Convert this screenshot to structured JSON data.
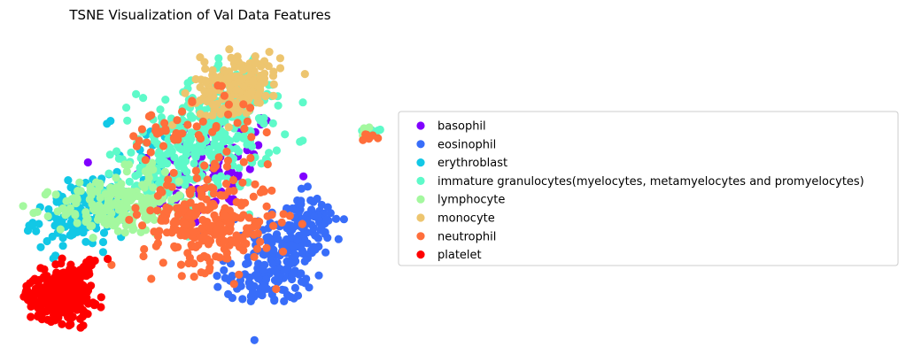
{
  "chart_data": {
    "type": "scatter",
    "title": "TSNE Visualization of Val Data Features",
    "xlabel": "",
    "ylabel": "",
    "axes_visible": false,
    "grid": false,
    "legend_placement": "right, outside plot area",
    "marker": "filled circle",
    "series": [
      {
        "name": "basophil",
        "color": "#8000ff",
        "clusters": [
          {
            "cx": 5.6,
            "cy": 7.2,
            "sx": 0.8,
            "sy": 1.0,
            "n": 60
          },
          {
            "cx": 4.2,
            "cy": 6.1,
            "sx": 0.9,
            "sy": 0.8,
            "n": 30
          },
          {
            "cx": 9.6,
            "cy": 8.1,
            "sx": 0.1,
            "sy": 0.15,
            "n": 3
          }
        ]
      },
      {
        "name": "eosinophil",
        "color": "#386df9",
        "clusters": [
          {
            "cx": 7.4,
            "cy": 3.9,
            "sx": 0.6,
            "sy": 0.9,
            "n": 140
          },
          {
            "cx": 6.7,
            "cy": 2.6,
            "sx": 0.5,
            "sy": 0.5,
            "n": 60
          },
          {
            "cx": 8.1,
            "cy": 4.8,
            "sx": 0.4,
            "sy": 0.4,
            "n": 40
          },
          {
            "cx": 6.8,
            "cy": 2.0,
            "sx": 0.5,
            "sy": 0.2,
            "n": 25
          },
          {
            "cx": 9.6,
            "cy": 8.2,
            "sx": 0.1,
            "sy": 0.1,
            "n": 3
          }
        ]
      },
      {
        "name": "erythroblast",
        "color": "#12c8e6",
        "clusters": [
          {
            "cx": 1.4,
            "cy": 4.8,
            "sx": 0.5,
            "sy": 0.6,
            "n": 90
          },
          {
            "cx": 2.3,
            "cy": 5.3,
            "sx": 0.7,
            "sy": 0.5,
            "n": 60
          },
          {
            "cx": 3.5,
            "cy": 7.2,
            "sx": 0.6,
            "sy": 0.8,
            "n": 25
          }
        ]
      },
      {
        "name": "immature granulocytes(myelocytes, metamyelocytes and promyelocytes)",
        "color": "#5efac9",
        "clusters": [
          {
            "cx": 5.1,
            "cy": 8.0,
            "sx": 0.9,
            "sy": 1.0,
            "n": 220
          },
          {
            "cx": 6.0,
            "cy": 9.6,
            "sx": 0.5,
            "sy": 0.6,
            "n": 80
          },
          {
            "cx": 3.8,
            "cy": 6.6,
            "sx": 0.7,
            "sy": 0.7,
            "n": 60
          },
          {
            "cx": 9.6,
            "cy": 8.25,
            "sx": 0.15,
            "sy": 0.1,
            "n": 8
          }
        ]
      },
      {
        "name": "lymphocyte",
        "color": "#a4f89f",
        "clusters": [
          {
            "cx": 2.6,
            "cy": 5.2,
            "sx": 0.8,
            "sy": 0.5,
            "n": 160
          },
          {
            "cx": 3.6,
            "cy": 6.0,
            "sx": 0.6,
            "sy": 0.6,
            "n": 40
          },
          {
            "cx": 9.6,
            "cy": 8.2,
            "sx": 0.1,
            "sy": 0.1,
            "n": 5
          }
        ]
      },
      {
        "name": "monocyte",
        "color": "#edc56f",
        "clusters": [
          {
            "cx": 6.1,
            "cy": 10.2,
            "sx": 0.55,
            "sy": 0.55,
            "n": 150
          },
          {
            "cx": 5.5,
            "cy": 9.3,
            "sx": 0.4,
            "sy": 0.4,
            "n": 30
          }
        ]
      },
      {
        "name": "neutrophil",
        "color": "#ff6e3b",
        "clusters": [
          {
            "cx": 5.2,
            "cy": 4.7,
            "sx": 0.9,
            "sy": 0.9,
            "n": 260
          },
          {
            "cx": 4.0,
            "cy": 7.9,
            "sx": 0.5,
            "sy": 0.6,
            "n": 30
          },
          {
            "cx": 5.8,
            "cy": 8.6,
            "sx": 0.7,
            "sy": 1.0,
            "n": 25
          },
          {
            "cx": 9.65,
            "cy": 8.05,
            "sx": 0.12,
            "sy": 0.08,
            "n": 6
          }
        ]
      },
      {
        "name": "platelet",
        "color": "#ff0000",
        "clusters": [
          {
            "cx": 1.1,
            "cy": 1.8,
            "sx": 0.45,
            "sy": 0.45,
            "n": 280
          },
          {
            "cx": 1.4,
            "cy": 2.6,
            "sx": 0.2,
            "sy": 0.25,
            "n": 40
          },
          {
            "cx": 2.0,
            "cy": 3.1,
            "sx": 0.15,
            "sy": 0.15,
            "n": 8
          }
        ]
      }
    ],
    "xlim": [
      0,
      10
    ],
    "ylim": [
      0,
      12
    ]
  }
}
